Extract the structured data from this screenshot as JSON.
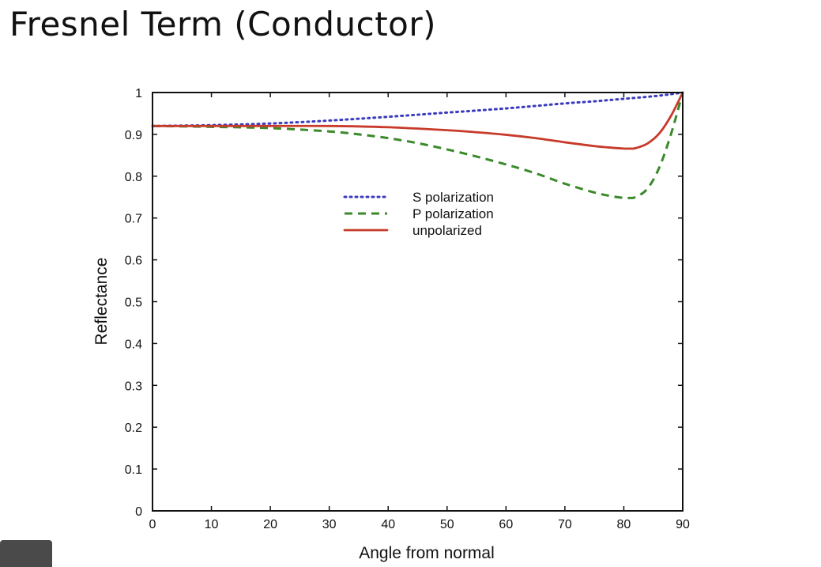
{
  "slide": {
    "title": "Fresnel Term (Conductor)"
  },
  "chart_data": {
    "type": "line",
    "title": "",
    "xlabel": "Angle from normal",
    "ylabel": "Reflectance",
    "xlim": [
      0,
      90
    ],
    "ylim": [
      0,
      1
    ],
    "xticks": [
      "0",
      "10",
      "20",
      "30",
      "40",
      "50",
      "60",
      "70",
      "80",
      "90"
    ],
    "yticks": [
      "0",
      "0.1",
      "0.2",
      "0.3",
      "0.4",
      "0.5",
      "0.6",
      "0.7",
      "0.8",
      "0.9",
      "1"
    ],
    "grid": false,
    "legend_placement": "center",
    "series": [
      {
        "name": "S polarization",
        "color": "#3b3bbf",
        "style": "dotted",
        "x": [
          0,
          10,
          20,
          30,
          40,
          50,
          60,
          70,
          75,
          80,
          85,
          88,
          90
        ],
        "y": [
          0.92,
          0.922,
          0.926,
          0.933,
          0.942,
          0.952,
          0.962,
          0.974,
          0.979,
          0.985,
          0.991,
          0.996,
          1.0
        ]
      },
      {
        "name": "P polarization",
        "color": "#3a8a2a",
        "style": "dashed",
        "x": [
          0,
          10,
          20,
          30,
          35,
          40,
          45,
          50,
          55,
          60,
          65,
          70,
          75,
          78,
          80,
          81,
          82,
          84,
          86,
          88,
          90
        ],
        "y": [
          0.92,
          0.918,
          0.915,
          0.907,
          0.9,
          0.891,
          0.879,
          0.864,
          0.847,
          0.828,
          0.807,
          0.782,
          0.761,
          0.752,
          0.748,
          0.748,
          0.75,
          0.77,
          0.82,
          0.9,
          1.0
        ]
      },
      {
        "name": "unpolarized",
        "color": "#c83b2a",
        "style": "solid",
        "x": [
          0,
          10,
          20,
          30,
          40,
          50,
          55,
          60,
          65,
          70,
          75,
          78,
          80,
          81,
          82,
          84,
          86,
          88,
          90
        ],
        "y": [
          0.92,
          0.92,
          0.92,
          0.92,
          0.917,
          0.91,
          0.905,
          0.899,
          0.891,
          0.881,
          0.872,
          0.868,
          0.866,
          0.866,
          0.867,
          0.878,
          0.902,
          0.944,
          1.0
        ]
      }
    ]
  }
}
